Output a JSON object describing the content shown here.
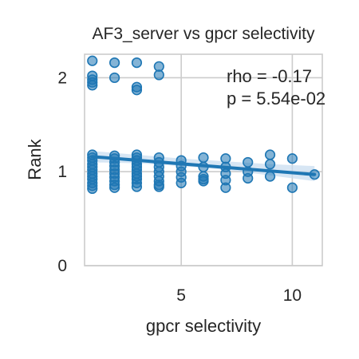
{
  "chart_data": {
    "type": "scatter",
    "title": "AF3_server vs gpcr selectivity",
    "xlabel": "gpcr selectivity",
    "ylabel": "Rank",
    "xlim": [
      0.65,
      11.35
    ],
    "ylim": [
      0,
      2.25
    ],
    "xticks": [
      5,
      10
    ],
    "yticks": [
      0,
      1,
      2
    ],
    "grid": true,
    "legend": "none",
    "annotations": [
      "rho = -0.17",
      "p = 5.54e-02"
    ],
    "colors": {
      "points": "#1f77b4",
      "line": "#1f77b4",
      "band": "#c6dbef",
      "grid": "#cccccc",
      "spine": "#cccccc"
    },
    "points": [
      [
        1,
        2.18
      ],
      [
        1,
        2.02
      ],
      [
        1,
        1.98
      ],
      [
        1,
        1.95
      ],
      [
        1,
        1.92
      ],
      [
        1,
        1.18
      ],
      [
        1,
        1.15
      ],
      [
        1,
        1.12
      ],
      [
        1,
        1.08
      ],
      [
        1,
        1.05
      ],
      [
        1,
        1.02
      ],
      [
        1,
        0.98
      ],
      [
        1,
        0.95
      ],
      [
        1,
        0.92
      ],
      [
        1,
        0.88
      ],
      [
        1,
        0.85
      ],
      [
        1,
        0.82
      ],
      [
        2,
        2.16
      ],
      [
        2,
        2.0
      ],
      [
        2,
        1.17
      ],
      [
        2,
        1.14
      ],
      [
        2,
        1.1
      ],
      [
        2,
        1.06
      ],
      [
        2,
        1.02
      ],
      [
        2,
        0.98
      ],
      [
        2,
        0.94
      ],
      [
        2,
        0.9
      ],
      [
        2,
        0.86
      ],
      [
        2,
        0.83
      ],
      [
        3,
        2.16
      ],
      [
        3,
        1.9
      ],
      [
        3,
        1.87
      ],
      [
        3,
        1.18
      ],
      [
        3,
        1.15
      ],
      [
        3,
        1.12
      ],
      [
        3,
        1.08
      ],
      [
        3,
        1.05
      ],
      [
        3,
        1.02
      ],
      [
        3,
        0.98
      ],
      [
        3,
        0.95
      ],
      [
        3,
        0.92
      ],
      [
        3,
        0.88
      ],
      [
        3,
        0.84
      ],
      [
        4,
        2.12
      ],
      [
        4,
        2.03
      ],
      [
        4,
        1.15
      ],
      [
        4,
        1.1
      ],
      [
        4,
        1.05
      ],
      [
        4,
        1.0
      ],
      [
        4,
        0.95
      ],
      [
        4,
        0.9
      ],
      [
        4,
        0.86
      ],
      [
        4,
        0.84
      ],
      [
        5,
        1.12
      ],
      [
        5,
        1.06
      ],
      [
        5,
        1.0
      ],
      [
        5,
        0.94
      ],
      [
        5,
        0.88
      ],
      [
        6,
        1.15
      ],
      [
        6,
        1.05
      ],
      [
        6,
        0.95
      ],
      [
        6,
        0.92
      ],
      [
        6,
        0.9
      ],
      [
        7,
        1.14
      ],
      [
        7,
        1.05
      ],
      [
        7,
        0.98
      ],
      [
        7,
        0.91
      ],
      [
        7,
        0.83
      ],
      [
        8,
        1.1
      ],
      [
        8,
        1.0
      ],
      [
        8,
        0.93
      ],
      [
        9,
        1.18
      ],
      [
        9,
        1.08
      ],
      [
        9,
        0.95
      ],
      [
        10,
        1.14
      ],
      [
        10,
        0.83
      ],
      [
        11,
        0.97
      ]
    ],
    "regression": {
      "x_start": 1,
      "x_end": 11,
      "y_start": 1.16,
      "y_end": 0.97
    },
    "confidence_band": {
      "x": [
        1,
        3,
        5,
        7,
        9,
        11
      ],
      "lower": [
        1.1,
        1.09,
        1.06,
        1.02,
        0.96,
        0.9
      ],
      "upper": [
        1.22,
        1.18,
        1.14,
        1.11,
        1.08,
        1.06
      ]
    }
  }
}
